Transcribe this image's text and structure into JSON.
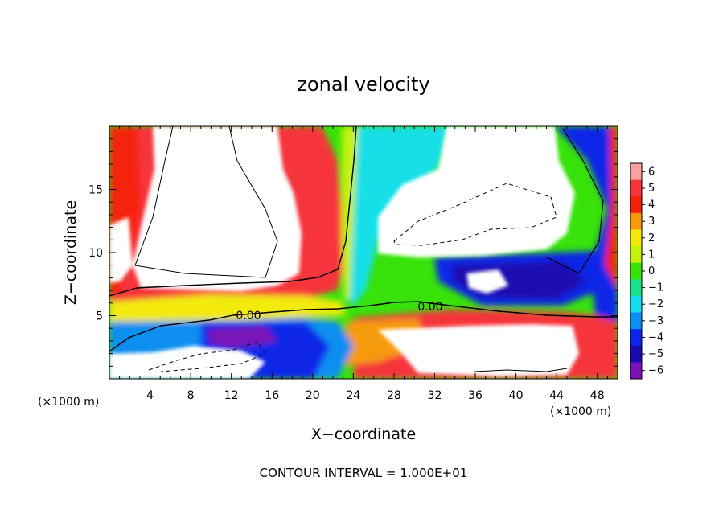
{
  "chart_data": {
    "type": "heatmap",
    "title": "zonal velocity",
    "xlabel": "X−coordinate",
    "ylabel": "Z−coordinate",
    "x_unit_label": "(×1000 m)",
    "y_unit_label": "(×1000 m)",
    "xlim": [
      0,
      50
    ],
    "ylim": [
      0,
      20
    ],
    "xticks": [
      4,
      8,
      12,
      16,
      20,
      24,
      28,
      32,
      36,
      40,
      44,
      48
    ],
    "yticks": [
      5,
      10,
      15
    ],
    "colorbar": {
      "levels": [
        6,
        5,
        4,
        3,
        2,
        1,
        0,
        -1,
        -2,
        -3,
        -4,
        -5,
        -6
      ],
      "tick_labels": [
        "6",
        "5",
        "4",
        "3",
        "2",
        "1",
        "0",
        "−1",
        "−2",
        "−3",
        "−4",
        "−5",
        "−6"
      ],
      "colors": [
        "#f7a0a0",
        "#f5353b",
        "#f5200a",
        "#f69a0a",
        "#f2ea0c",
        "#c4f20c",
        "#37e30b",
        "#18e38a",
        "#14dfe8",
        "#0a8ff0",
        "#0c26e8",
        "#1a0ab0",
        "#7a12b6"
      ]
    },
    "contour_labels": [
      {
        "text": "0.00",
        "x": 13.5,
        "z": 5.1
      },
      {
        "text": "0.00",
        "x": 31.5,
        "z": 5.9
      }
    ],
    "contour_interval_note": "CONTOUR INTERVAL =  1.000E+01"
  }
}
